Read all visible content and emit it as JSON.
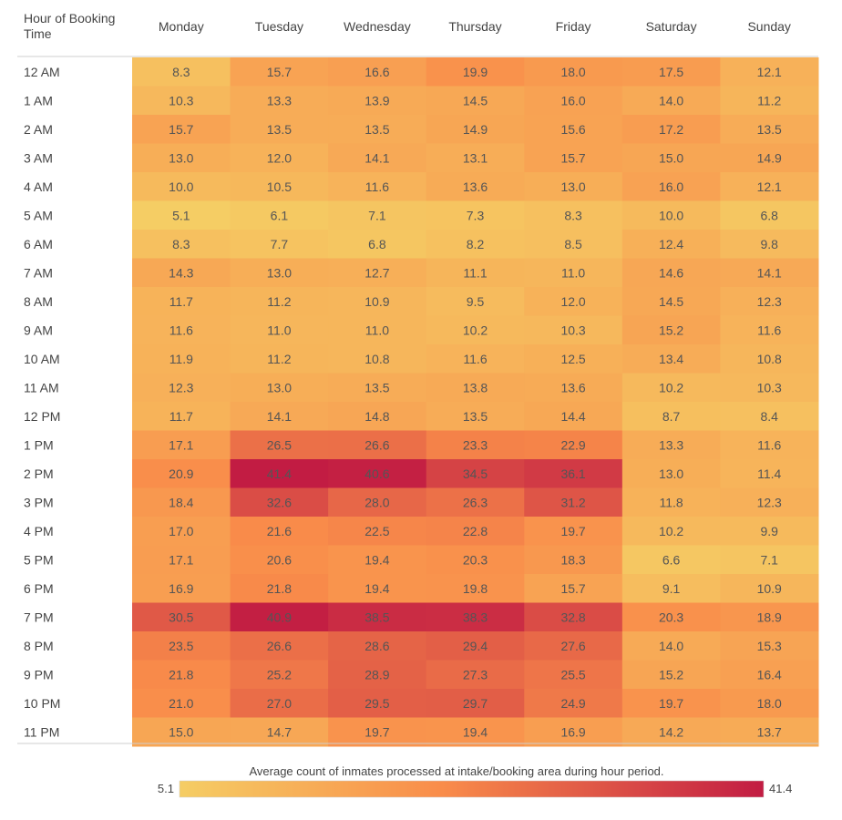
{
  "chart_data": {
    "type": "heatmap",
    "corner_label_line1": "Hour of Booking",
    "corner_label_line2": "Time",
    "columns": [
      "Monday",
      "Tuesday",
      "Wednesday",
      "Thursday",
      "Friday",
      "Saturday",
      "Sunday"
    ],
    "rows": [
      "12 AM",
      "1 AM",
      "2 AM",
      "3 AM",
      "4 AM",
      "5 AM",
      "6 AM",
      "7 AM",
      "8 AM",
      "9 AM",
      "10 AM",
      "11 AM",
      "12 PM",
      "1 PM",
      "2 PM",
      "3 PM",
      "4 PM",
      "5 PM",
      "6 PM",
      "7 PM",
      "8 PM",
      "9 PM",
      "10 PM",
      "11 PM"
    ],
    "values": [
      [
        8.3,
        15.7,
        16.6,
        19.9,
        18.0,
        17.5,
        12.1
      ],
      [
        10.3,
        13.3,
        13.9,
        14.5,
        16.0,
        14.0,
        11.2
      ],
      [
        15.7,
        13.5,
        13.5,
        14.9,
        15.6,
        17.2,
        13.5
      ],
      [
        13.0,
        12.0,
        14.1,
        13.1,
        15.7,
        15.0,
        14.9
      ],
      [
        10.0,
        10.5,
        11.6,
        13.6,
        13.0,
        16.0,
        12.1
      ],
      [
        5.1,
        6.1,
        7.1,
        7.3,
        8.3,
        10.0,
        6.8
      ],
      [
        8.3,
        7.7,
        6.8,
        8.2,
        8.5,
        12.4,
        9.8
      ],
      [
        14.3,
        13.0,
        12.7,
        11.1,
        11.0,
        14.6,
        14.1
      ],
      [
        11.7,
        11.2,
        10.9,
        9.5,
        12.0,
        14.5,
        12.3
      ],
      [
        11.6,
        11.0,
        11.0,
        10.2,
        10.3,
        15.2,
        11.6
      ],
      [
        11.9,
        11.2,
        10.8,
        11.6,
        12.5,
        13.4,
        10.8
      ],
      [
        12.3,
        13.0,
        13.5,
        13.8,
        13.6,
        10.2,
        10.3
      ],
      [
        11.7,
        14.1,
        14.8,
        13.5,
        14.4,
        8.7,
        8.4
      ],
      [
        17.1,
        26.5,
        26.6,
        23.3,
        22.9,
        13.3,
        11.6
      ],
      [
        20.9,
        41.4,
        40.6,
        34.5,
        36.1,
        13.0,
        11.4
      ],
      [
        18.4,
        32.6,
        28.0,
        26.3,
        31.2,
        11.8,
        12.3
      ],
      [
        17.0,
        21.6,
        22.5,
        22.8,
        19.7,
        10.2,
        9.9
      ],
      [
        17.1,
        20.6,
        19.4,
        20.3,
        18.3,
        6.6,
        7.1
      ],
      [
        16.9,
        21.8,
        19.4,
        19.8,
        15.7,
        9.1,
        10.9
      ],
      [
        30.5,
        40.9,
        38.5,
        38.3,
        32.8,
        20.3,
        18.9
      ],
      [
        23.5,
        26.6,
        28.6,
        29.4,
        27.6,
        14.0,
        15.3
      ],
      [
        21.8,
        25.2,
        28.9,
        27.3,
        25.5,
        15.2,
        16.4
      ],
      [
        21.0,
        27.0,
        29.5,
        29.7,
        24.9,
        19.7,
        18.0
      ],
      [
        15.0,
        14.7,
        19.7,
        19.4,
        16.9,
        14.2,
        13.7
      ]
    ],
    "value_range": [
      5.1,
      41.4
    ],
    "color_low": "#f5cd64",
    "color_mid": "#f98c4a",
    "color_high": "#c21c43",
    "legend_title": "Average count of inmates processed at intake/booking area during hour period.",
    "legend_min_label": "5.1",
    "legend_max_label": "41.4",
    "legend_position": "bottom-center"
  }
}
